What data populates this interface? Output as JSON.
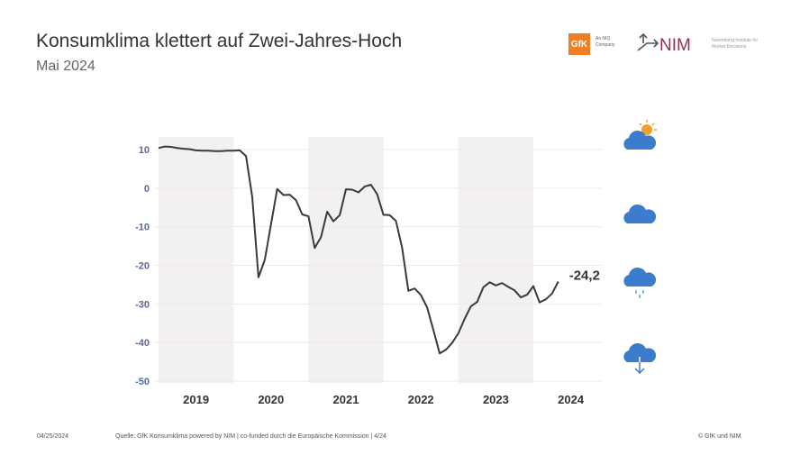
{
  "header": {
    "title": "Konsumklima klettert auf Zwei-Jahres-Hoch",
    "subtitle": "Mai 2024"
  },
  "logos": {
    "gfk": "GfK",
    "gfk_tagline": "An NIQ Company",
    "nim": "NIM",
    "nim_tagline": "Nuremberg Institute for Market Decisions"
  },
  "footer": {
    "date": "04/25/2024",
    "source": "Quelle: GfK Konsumklima powered by NIM | co-funded durch die Europäische Kommission | 4/24",
    "copyright": "© GfK und NIM"
  },
  "colors": {
    "line": "#3a3a3a",
    "band": "#f2f0f0",
    "axis_text": "#5a6a9a",
    "icons": "#3d7ccc",
    "sun": "#f0a030"
  },
  "legend_icons": [
    "sun-cloud-icon",
    "cloud-icon",
    "rain-cloud-icon",
    "cloud-down-arrow-icon"
  ],
  "chart_data": {
    "type": "line",
    "title": "",
    "xlabel": "",
    "ylabel": "",
    "ylim": [
      -50,
      10
    ],
    "yticks": [
      10,
      0,
      -10,
      -20,
      -30,
      -40,
      -50
    ],
    "ytick_labels": [
      "10",
      "0",
      "-10",
      "-20",
      "-30",
      "-40",
      "-50"
    ],
    "xtick_labels": [
      "2019",
      "2020",
      "2021",
      "2022",
      "2023",
      "2024"
    ],
    "x_start": "2019-01",
    "x_end": "2024-05",
    "shaded_years": [
      "2019",
      "2021",
      "2023"
    ],
    "grid": true,
    "end_label": "-24,2",
    "series": [
      {
        "values": [
          10.4,
          10.8,
          10.7,
          10.4,
          10.2,
          10.1,
          9.8,
          9.7,
          9.7,
          9.6,
          9.6,
          9.7,
          9.7,
          9.8,
          8.3,
          -2.3,
          -23.1,
          -18.6,
          -9.4,
          -0.2,
          -1.8,
          -1.7,
          -3.1,
          -6.8,
          -7.3,
          -15.5,
          -12.7,
          -6.1,
          -8.6,
          -7.0,
          -0.3,
          -0.4,
          -1.1,
          0.4,
          0.9,
          -1.6,
          -6.9,
          -7.0,
          -8.5,
          -15.5,
          -26.6,
          -26.0,
          -27.7,
          -30.9,
          -36.8,
          -42.8,
          -41.9,
          -40.1,
          -37.6,
          -33.9,
          -30.6,
          -29.5,
          -25.7,
          -24.4,
          -25.2,
          -24.6,
          -25.6,
          -26.5,
          -28.3,
          -27.6,
          -25.4,
          -29.6,
          -28.8,
          -27.3,
          -24.2
        ]
      }
    ]
  }
}
